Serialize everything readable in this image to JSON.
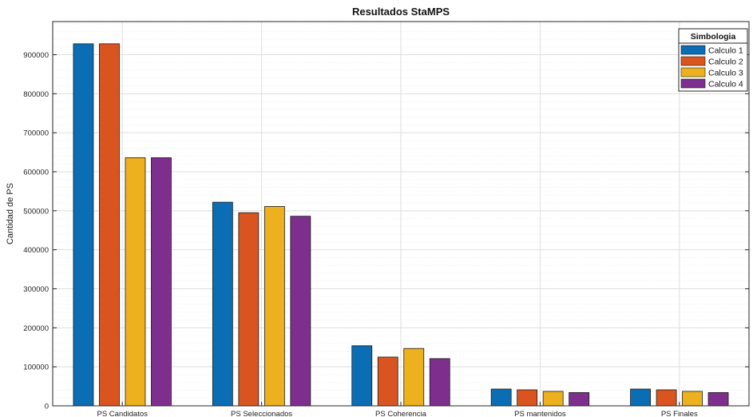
{
  "chart_data": {
    "type": "bar",
    "title": "Resultados StaMPS",
    "xlabel": "",
    "ylabel": "Cantidad de PS",
    "categories": [
      "PS Candidatos",
      "PS Seleccionados",
      "PS Coherencia",
      "PS mantenidos",
      "PS Finales"
    ],
    "series": [
      {
        "name": "Calculo 1",
        "color": "#0b6db3",
        "values": [
          928000,
          522000,
          154000,
          43000,
          43000
        ]
      },
      {
        "name": "Calculo 2",
        "color": "#d9541e",
        "values": [
          928000,
          495000,
          125000,
          41000,
          41000
        ]
      },
      {
        "name": "Calculo 3",
        "color": "#edb120",
        "values": [
          636000,
          511000,
          147000,
          37000,
          37000
        ]
      },
      {
        "name": "Calculo 4",
        "color": "#7e2f8e",
        "values": [
          636000,
          486000,
          121000,
          34000,
          34000
        ]
      }
    ],
    "ylim": [
      0,
      985000
    ],
    "yticks": [
      0,
      100000,
      200000,
      300000,
      400000,
      500000,
      600000,
      700000,
      800000,
      900000
    ],
    "grid": true,
    "legend": {
      "title": "Simbologia",
      "position": "top-right"
    }
  }
}
